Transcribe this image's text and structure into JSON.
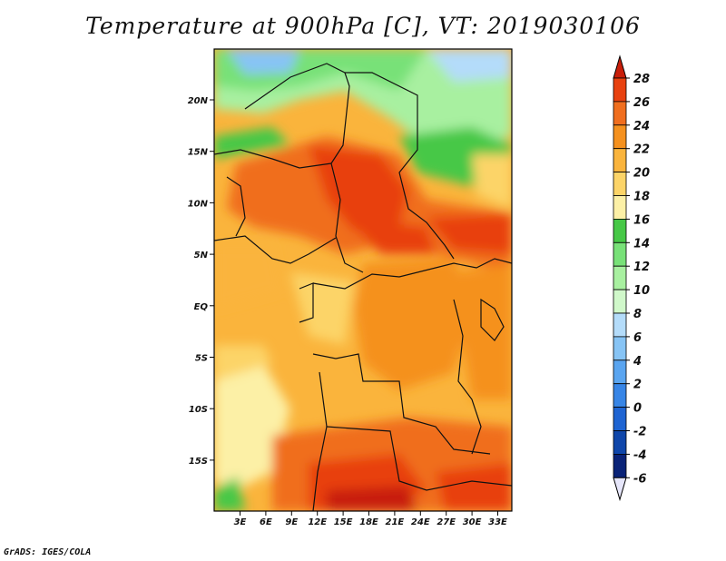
{
  "map": {
    "title": "Temperature at 900hPa [C], VT: 2019030106",
    "footer": "GrADS: IGES/COLA",
    "lat_ticks": [
      "20N",
      "15N",
      "10N",
      "5N",
      "EQ",
      "5S",
      "10S",
      "15S"
    ],
    "lon_ticks": [
      "3E",
      "6E",
      "9E",
      "12E",
      "15E",
      "18E",
      "21E",
      "24E",
      "27E",
      "30E",
      "33E"
    ],
    "colorbar": {
      "labels": [
        "28",
        "26",
        "24",
        "22",
        "20",
        "18",
        "16",
        "14",
        "12",
        "10",
        "8",
        "6",
        "4",
        "2",
        "0",
        "-2",
        "-4",
        "-6"
      ],
      "colors": [
        "#c81e0a",
        "#e8410f",
        "#f06e1e",
        "#f5911e",
        "#fab43c",
        "#fcd468",
        "#fcf0a6",
        "#46c846",
        "#78e178",
        "#a8f0a0",
        "#d0f8ca",
        "#b4dcfa",
        "#87c4f5",
        "#5aa5f0",
        "#3785e6",
        "#1e64d2",
        "#0f46aa",
        "#0a2378",
        "#e6e6fa"
      ]
    }
  }
}
